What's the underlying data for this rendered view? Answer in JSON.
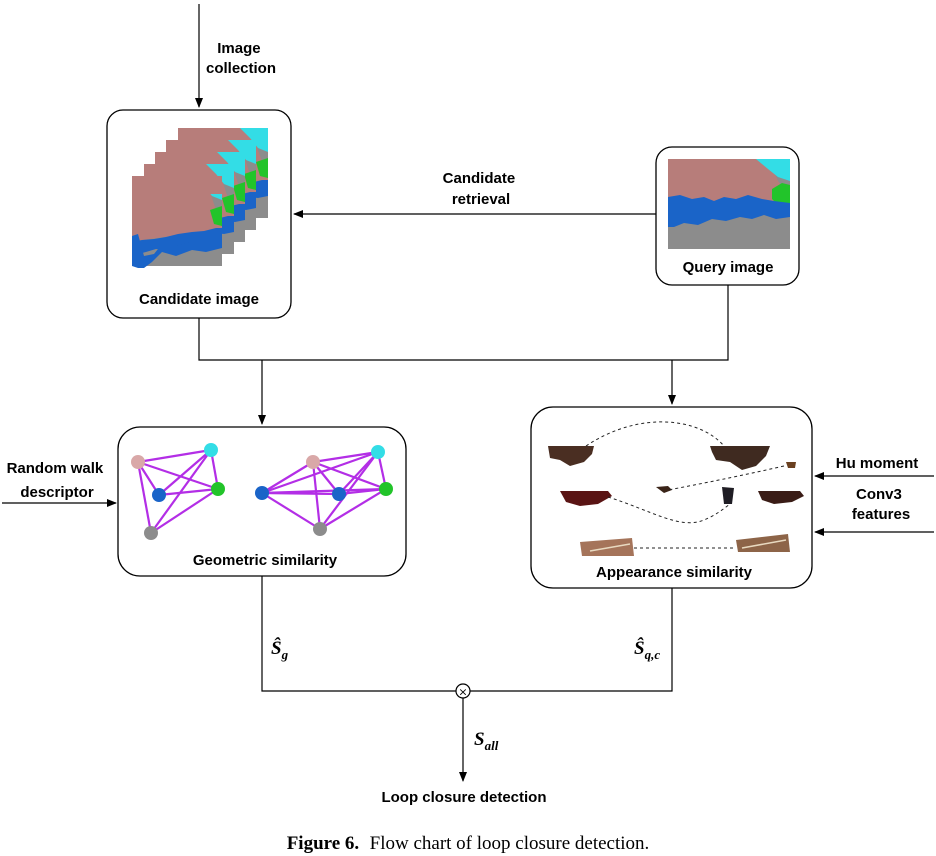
{
  "nodes": {
    "image_collection": "Image\ncollection",
    "candidate_retrieval": "Candidate\nretrieval",
    "candidate_image": "Candidate image",
    "query_image": "Query image",
    "random_walk": "Random walk\ndescriptor",
    "geometric_similarity": "Geometric similarity",
    "hu_moment": "Hu moment",
    "conv3": "Conv3\nfeatures",
    "appearance_similarity": "Appearance similarity",
    "loop_closure": "Loop closure detection"
  },
  "symbols": {
    "s_g": "Ŝ",
    "s_g_sub": "g",
    "s_qc": "Ŝ",
    "s_qc_sub": "q,c",
    "s_all": "S",
    "s_all_sub": "all",
    "product": "×"
  },
  "caption": {
    "label": "Figure 6.",
    "text": "Flow chart of loop closure detection."
  },
  "colors": {
    "segment_building": "#b77d7a",
    "segment_sky": "#33dde6",
    "segment_water": "#1a64c8",
    "segment_road": "#8c8c8c",
    "segment_vegetation": "#22c42a",
    "graph_edge": "#b32ee6"
  }
}
